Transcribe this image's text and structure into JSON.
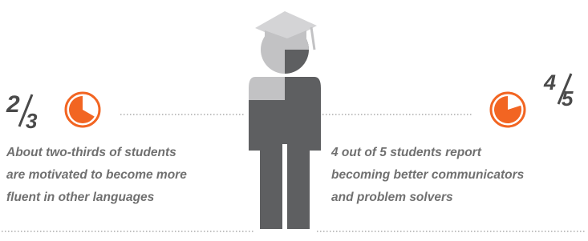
{
  "left": {
    "fraction": {
      "numerator": 2,
      "denominator": 3
    },
    "text": [
      "About two-thirds of students",
      "are motivated to become more",
      "fluent in other languages"
    ]
  },
  "right": {
    "fraction": {
      "numerator": 4,
      "denominator": 5
    },
    "text": [
      "4 out of 5 students report",
      "becoming better communicators",
      "and problem solvers"
    ]
  }
}
